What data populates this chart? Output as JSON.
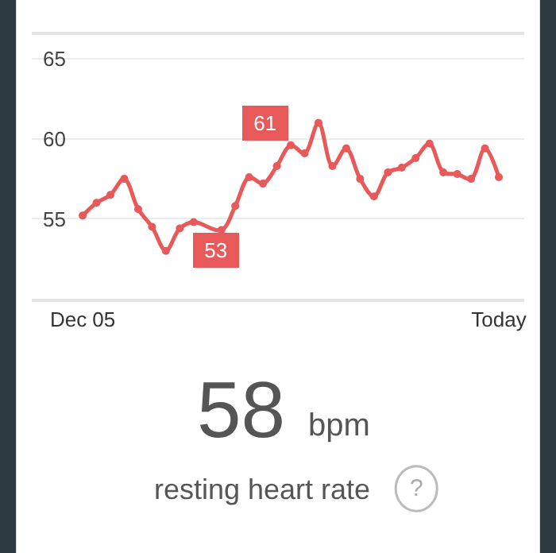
{
  "chart_data": {
    "type": "line",
    "categories": [
      "Dec 05",
      null,
      null,
      null,
      null,
      null,
      null,
      null,
      null,
      null,
      null,
      null,
      null,
      null,
      null,
      null,
      null,
      null,
      null,
      null,
      null,
      null,
      null,
      null,
      null,
      null,
      null,
      null,
      null,
      null,
      "Today"
    ],
    "series": [
      {
        "color": "#e8595a",
        "values": [
          55.2,
          56.0,
          56.5,
          57.5,
          55.6,
          54.5,
          53,
          54.4,
          54.8,
          null,
          54.3,
          55.8,
          57.6,
          57.2,
          58.3,
          59.6,
          59.1,
          61,
          58.3,
          59.4,
          57.5,
          56.4,
          57.9,
          58.2,
          58.8,
          59.7,
          57.9,
          57.8,
          57.5,
          59.4,
          57.6
        ]
      }
    ],
    "ylim": [
      50,
      66.5
    ],
    "yticks": [
      55,
      60,
      65
    ],
    "grid": "y",
    "marker": "circle",
    "line_style": "solid",
    "annotations": [
      {
        "text": "61",
        "y": 61
      },
      {
        "text": "53",
        "y": 53
      },
      "58",
      "bpm",
      "resting heart rate",
      "?"
    ]
  }
}
